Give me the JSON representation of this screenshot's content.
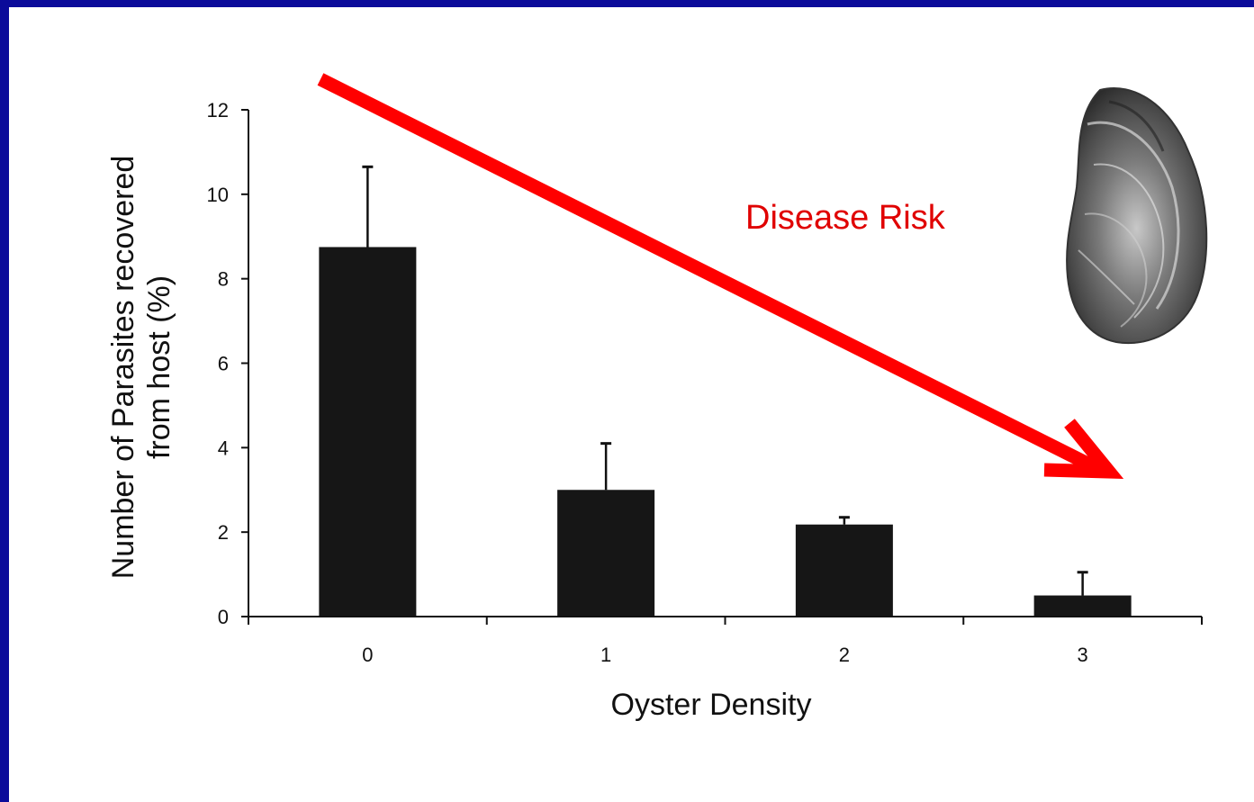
{
  "chart_data": {
    "type": "bar",
    "categories": [
      "0",
      "1",
      "2",
      "3"
    ],
    "values": [
      8.75,
      3.0,
      2.18,
      0.5
    ],
    "errors": [
      1.9,
      1.1,
      0.17,
      0.55
    ],
    "xlabel": "Oyster Density",
    "ylabel_line1": "Number of Parasites recovered",
    "ylabel_line2": "from host (%)",
    "ylim": [
      0,
      12
    ],
    "yticks": [
      0,
      2,
      4,
      6,
      8,
      10,
      12
    ],
    "grid": false,
    "bar_color": "#161616"
  },
  "annotation": {
    "label": "Disease Risk",
    "color": "#ff0000"
  },
  "colors": {
    "border": "#0b0b9a",
    "background": "#ffffff"
  }
}
